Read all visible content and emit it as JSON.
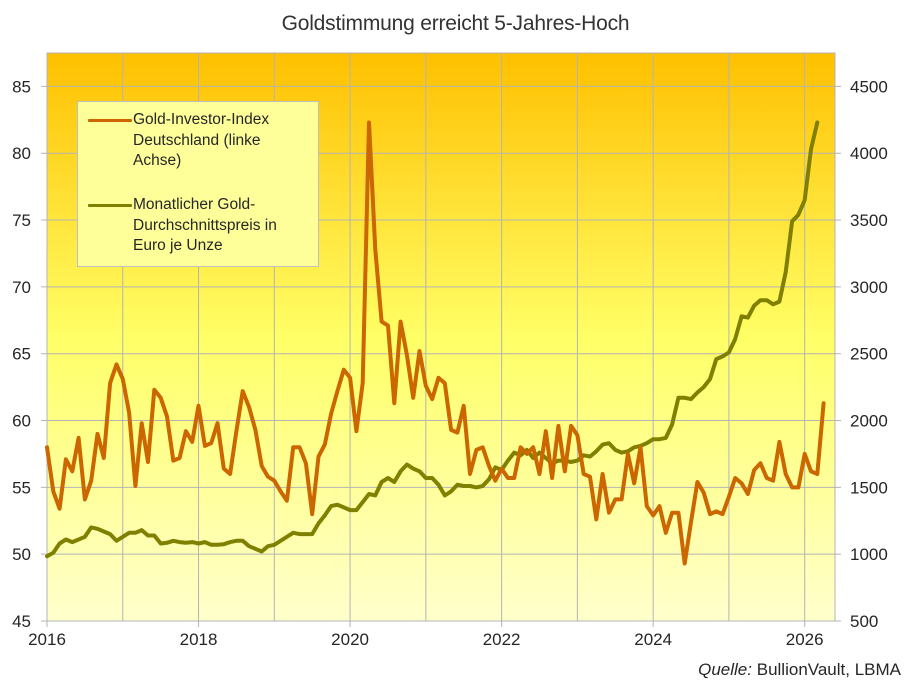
{
  "chart_data": {
    "type": "line",
    "title": "Goldstimmung erreicht 5-Jahres-Hoch",
    "xlabel": "",
    "ylabel_left": "",
    "ylabel_right": "",
    "x_start": "2016-01",
    "x_step": "month",
    "x_ticks": [
      "2016",
      "2018",
      "2020",
      "2022",
      "2024",
      "2026"
    ],
    "x_range": [
      2016.0,
      2026.4
    ],
    "y_left": {
      "range": [
        45,
        87.5
      ],
      "ticks": [
        45,
        50,
        55,
        60,
        65,
        70,
        75,
        80,
        85
      ]
    },
    "y_right": {
      "range": [
        500,
        4750
      ],
      "ticks": [
        500,
        1000,
        1500,
        2000,
        2500,
        3000,
        3500,
        4000,
        4500
      ]
    },
    "grid": true,
    "legend_position": "upper-left inside",
    "series": [
      {
        "name": "Gold-Investor-Index Deutschland (linke Achse)",
        "axis": "left",
        "color": "#cc6600",
        "values": [
          58.0,
          54.7,
          53.4,
          57.1,
          56.2,
          58.7,
          54.1,
          55.5,
          59.0,
          57.2,
          62.8,
          64.2,
          63.1,
          60.6,
          55.1,
          59.8,
          56.9,
          62.3,
          61.7,
          60.3,
          57.0,
          57.2,
          59.2,
          58.4,
          61.1,
          58.1,
          58.3,
          59.8,
          56.4,
          56.0,
          59.2,
          62.2,
          61.0,
          59.3,
          56.6,
          55.8,
          55.5,
          54.7,
          54.0,
          58.0,
          58.0,
          56.8,
          53.0,
          57.3,
          58.2,
          60.5,
          62.2,
          63.8,
          63.2,
          59.2,
          62.8,
          82.3,
          72.8,
          67.4,
          67.1,
          61.3,
          67.4,
          64.9,
          61.7,
          65.2,
          62.6,
          61.6,
          63.2,
          62.8,
          59.3,
          59.1,
          61.1,
          56.0,
          57.8,
          58.0,
          56.6,
          55.5,
          56.4,
          55.7,
          55.7,
          58.0,
          57.5,
          58.0,
          56.0,
          59.2,
          55.7,
          59.6,
          56.2,
          59.6,
          58.9,
          56.0,
          55.8,
          52.6,
          56.0,
          53.1,
          54.1,
          54.1,
          57.5,
          55.3,
          58.0,
          53.6,
          52.9,
          53.6,
          51.6,
          53.1,
          53.1,
          49.3,
          52.4,
          55.4,
          54.6,
          53.0,
          53.2,
          53.0,
          54.3,
          55.7,
          55.3,
          54.5,
          56.3,
          56.8,
          55.7,
          55.5,
          58.4,
          56.0,
          55.0,
          55.0,
          57.5,
          56.2,
          56.0,
          61.3
        ]
      },
      {
        "name": "Monatlicher Gold-Durchschnittspreis in Euro je Unze",
        "axis": "right",
        "color": "#808000",
        "values": [
          985,
          1010,
          1080,
          1110,
          1090,
          1110,
          1130,
          1200,
          1190,
          1170,
          1150,
          1100,
          1130,
          1160,
          1160,
          1180,
          1140,
          1140,
          1080,
          1085,
          1100,
          1090,
          1085,
          1090,
          1080,
          1090,
          1070,
          1070,
          1075,
          1090,
          1100,
          1100,
          1060,
          1040,
          1020,
          1060,
          1070,
          1100,
          1130,
          1160,
          1150,
          1150,
          1150,
          1230,
          1290,
          1360,
          1370,
          1350,
          1330,
          1330,
          1390,
          1450,
          1440,
          1540,
          1570,
          1540,
          1620,
          1670,
          1640,
          1620,
          1570,
          1570,
          1520,
          1440,
          1470,
          1520,
          1510,
          1510,
          1500,
          1510,
          1560,
          1650,
          1630,
          1700,
          1760,
          1740,
          1780,
          1720,
          1760,
          1720,
          1680,
          1700,
          1700,
          1690,
          1700,
          1740,
          1730,
          1770,
          1820,
          1830,
          1780,
          1760,
          1770,
          1800,
          1810,
          1830,
          1860,
          1860,
          1870,
          1970,
          2170,
          2170,
          2160,
          2210,
          2250,
          2310,
          2460,
          2480,
          2510,
          2610,
          2780,
          2770,
          2860,
          2900,
          2900,
          2870,
          2890,
          3110,
          3490,
          3540,
          3650,
          4030,
          4230
        ]
      }
    ],
    "source": {
      "label": "Quelle:",
      "text": "BullionVault,  LBMA"
    }
  },
  "legend": {
    "items": [
      {
        "label": "Gold-Investor-Index\nDeutschland (linke\nAchse)",
        "color": "#cc6600"
      },
      {
        "label": "Monatlicher Gold-\nDurchschnittspreis in\nEuro je Unze",
        "color": "#808000"
      }
    ]
  },
  "colors": {
    "bg_top": "#ffc000",
    "bg_mid": "#ffff66",
    "bg_bottom": "#ffffcc",
    "grid": "#b4b4b4",
    "axis_text": "#262626"
  }
}
